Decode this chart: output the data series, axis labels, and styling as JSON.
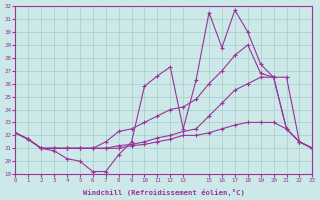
{
  "background_color": "#cce8e8",
  "grid_color": "#aacccc",
  "line_color": "#993399",
  "xlabel": "Windchill (Refroidissement éolien,°C)",
  "xlim": [
    0,
    23
  ],
  "ylim": [
    19,
    32
  ],
  "yticks": [
    19,
    20,
    21,
    22,
    23,
    24,
    25,
    26,
    27,
    28,
    29,
    30,
    31,
    32
  ],
  "xtick_positions": [
    0,
    1,
    2,
    3,
    4,
    5,
    6,
    7,
    8,
    9,
    10,
    11,
    12,
    13,
    15,
    16,
    17,
    18,
    19,
    20,
    21,
    22,
    23
  ],
  "xtick_labels": [
    "0",
    "1",
    "2",
    "3",
    "4",
    "5",
    "6",
    "7",
    "8",
    "9",
    "10",
    "11",
    "12",
    "13",
    "15",
    "16",
    "17",
    "18",
    "19",
    "20",
    "21",
    "22",
    "23"
  ],
  "x": [
    0,
    1,
    2,
    3,
    4,
    5,
    6,
    7,
    8,
    9,
    10,
    11,
    12,
    13,
    14,
    15,
    16,
    17,
    18,
    19,
    20,
    21,
    22,
    23
  ],
  "series1": [
    22.2,
    21.7,
    21.0,
    20.8,
    20.2,
    20.0,
    19.2,
    19.2,
    20.5,
    21.5,
    25.8,
    26.6,
    27.3,
    22.5,
    26.3,
    31.5,
    28.8,
    31.7,
    30.0,
    27.5,
    26.5,
    22.5,
    21.5,
    21.0
  ],
  "series2": [
    22.2,
    21.7,
    21.0,
    21.0,
    21.0,
    21.0,
    21.0,
    21.5,
    22.3,
    22.5,
    23.0,
    23.5,
    24.0,
    24.2,
    24.8,
    26.0,
    27.0,
    28.2,
    29.0,
    26.8,
    26.5,
    26.5,
    21.5,
    21.0
  ],
  "series3": [
    22.2,
    21.7,
    21.0,
    21.0,
    21.0,
    21.0,
    21.0,
    21.0,
    21.2,
    21.3,
    21.5,
    21.8,
    22.0,
    22.3,
    22.5,
    23.5,
    24.5,
    25.5,
    26.0,
    26.5,
    26.5,
    22.5,
    21.5,
    21.0
  ],
  "series4": [
    22.2,
    21.7,
    21.0,
    21.0,
    21.0,
    21.0,
    21.0,
    21.0,
    21.0,
    21.2,
    21.3,
    21.5,
    21.7,
    22.0,
    22.0,
    22.2,
    22.5,
    22.8,
    23.0,
    23.0,
    23.0,
    22.5,
    21.5,
    21.0
  ]
}
